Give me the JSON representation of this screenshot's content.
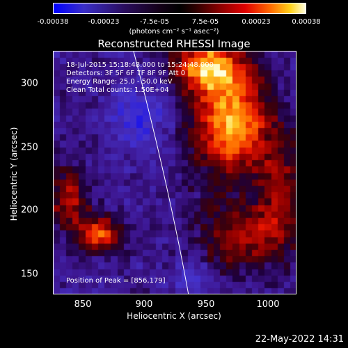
{
  "colorbar": {
    "ticks": [
      "-0.00038",
      "-0.00023",
      "-7.5e-05",
      "7.5e-05",
      "0.00023",
      "0.00038"
    ],
    "unit": "(photons cm⁻² s⁻¹ asec⁻²)"
  },
  "chart_data": {
    "type": "heatmap",
    "title": "Reconstructed RHESSI Image",
    "xlabel": "Heliocentric X (arcsec)",
    "ylabel": "Heliocentric Y (arcsec)",
    "xlim": [
      828,
      1018
    ],
    "ylim": [
      133,
      323
    ],
    "x_ticks": [
      "850",
      "900",
      "950",
      "1000"
    ],
    "y_ticks": [
      "150",
      "200",
      "250",
      "300"
    ],
    "zlim": [
      -0.00038,
      0.00038
    ],
    "peak": [
      856,
      179
    ],
    "colors": {
      "neg": "#0000ff",
      "zero": "#000000",
      "pos_mid": "#e00000",
      "pos_high": "#ffffe0"
    }
  },
  "annotations": {
    "time_range": "18-Jul-2015 15:18:48.000 to 15:24:48.000",
    "detectors": "Detectors: 3F 5F 6F 7F 8F 9F Att 0",
    "energy": "Energy Range: 25.0 - 50.0 keV",
    "method": "Clean     Total counts: 1.50E+04",
    "peak_text": "Position of Peak = [856,179]"
  },
  "footer": "22-May-2022 14:31"
}
